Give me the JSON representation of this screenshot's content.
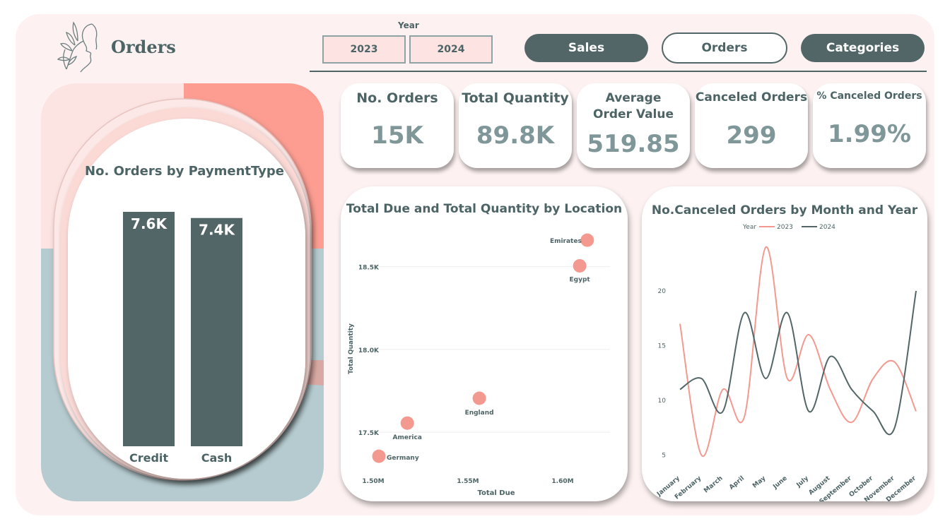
{
  "header": {
    "title": "Orders",
    "logo": "woman-face-with-leaves"
  },
  "year_slicer": {
    "label": "Year",
    "options": [
      "2023",
      "2024"
    ]
  },
  "nav": {
    "sales": "Sales",
    "orders": "Orders",
    "categories": "Categories"
  },
  "kpis": [
    {
      "label": "No. Orders",
      "value": "15K"
    },
    {
      "label": "Total Quantity",
      "value": "89.8K"
    },
    {
      "label": "Average Order Value",
      "value": "519.85"
    },
    {
      "label": "Canceled Orders",
      "value": "299"
    },
    {
      "label": "% Canceled Orders",
      "value": "1.99%"
    }
  ],
  "colors": {
    "dark": "#526667",
    "salmon": "#f4998f",
    "pink": "#fce4e2",
    "teal": "#b5cbcf",
    "background": "#fdf2f1"
  },
  "chart_data": [
    {
      "type": "bar",
      "title": "No. Orders by PaymentType",
      "categories": [
        "Credit",
        "Cash"
      ],
      "values": [
        7600,
        7400
      ],
      "data_labels": [
        "7.6K",
        "7.4K"
      ],
      "color": "#526667"
    },
    {
      "type": "scatter",
      "title": "Total Due and Total Quantity by Location",
      "xlabel": "Total Due",
      "ylabel": "Total Quantity",
      "xlim": [
        1500000,
        1625000
      ],
      "ylim": [
        17300,
        18750
      ],
      "xticks": [
        1500000,
        1550000,
        1600000
      ],
      "xtick_labels": [
        "1.50M",
        "1.55M",
        "1.60M"
      ],
      "yticks": [
        17500,
        18000,
        18500
      ],
      "ytick_labels": [
        "17.5K",
        "18.0K",
        "18.5K"
      ],
      "points": [
        {
          "label": "Emirates",
          "x": 1613000,
          "y": 18660
        },
        {
          "label": "Egypt",
          "x": 1609000,
          "y": 18505
        },
        {
          "label": "England",
          "x": 1556000,
          "y": 17705
        },
        {
          "label": "America",
          "x": 1518000,
          "y": 17555
        },
        {
          "label": "Germany",
          "x": 1503000,
          "y": 17355
        }
      ],
      "color": "#f4998f",
      "grid": true
    },
    {
      "type": "line",
      "title": "No.Canceled Orders by Month and Year",
      "legend_title": "Year",
      "legend_position": "top",
      "categories": [
        "January",
        "February",
        "March",
        "April",
        "May",
        "June",
        "July",
        "August",
        "September",
        "October",
        "November",
        "December"
      ],
      "series": [
        {
          "name": "2023",
          "color": "#f4998f",
          "values": [
            17,
            5,
            11,
            8.5,
            24,
            12,
            16,
            11,
            8,
            12,
            13.5,
            9
          ]
        },
        {
          "name": "2024",
          "color": "#526667",
          "values": [
            11,
            12,
            9,
            18,
            12,
            18,
            9,
            14,
            11,
            9,
            7.5,
            20
          ]
        }
      ],
      "ylim": [
        4,
        26
      ],
      "yticks": [
        5,
        10,
        15,
        20
      ]
    }
  ]
}
